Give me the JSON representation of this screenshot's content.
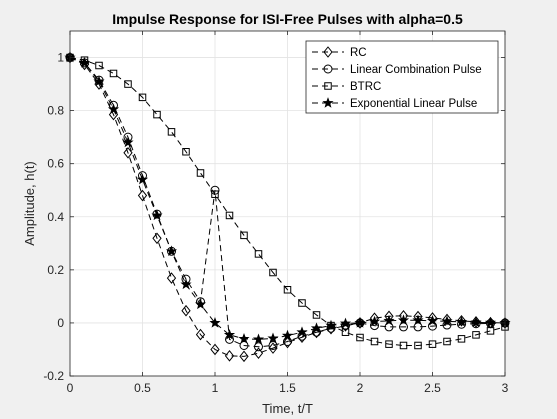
{
  "chart_data": {
    "type": "line",
    "title": "Impulse Response for ISI-Free Pulses with alpha=0.5",
    "xlabel": "Time, t/T",
    "ylabel": "Amplitude, h(t)",
    "xlim": [
      0,
      3
    ],
    "ylim": [
      -0.2,
      1.1
    ],
    "xticks": [
      0,
      0.5,
      1,
      1.5,
      2,
      2.5,
      3
    ],
    "xtick_labels": [
      "0",
      "0.5",
      "1",
      "1.5",
      "2",
      "2.5",
      "3"
    ],
    "yticks": [
      -0.2,
      0,
      0.2,
      0.4,
      0.6,
      0.8,
      1
    ],
    "ytick_labels": [
      "-0.2",
      "0",
      "0.2",
      "0.4",
      "0.6",
      "0.8",
      "1"
    ],
    "grid": true,
    "legend_position": "top-right",
    "x": [
      0,
      0.1,
      0.2,
      0.3,
      0.4,
      0.5,
      0.6,
      0.7,
      0.8,
      0.9,
      1.0,
      1.1,
      1.2,
      1.3,
      1.4,
      1.5,
      1.6,
      1.7,
      1.8,
      1.9,
      2.0,
      2.1,
      2.2,
      2.3,
      2.4,
      2.5,
      2.6,
      2.7,
      2.8,
      2.9,
      3.0
    ],
    "series": [
      {
        "name": "RC",
        "marker": "diamond",
        "values": [
          1.0,
          0.974,
          0.9,
          0.785,
          0.641,
          0.48,
          0.319,
          0.169,
          0.046,
          -0.044,
          -0.1,
          -0.124,
          -0.126,
          -0.114,
          -0.095,
          -0.074,
          -0.054,
          -0.036,
          -0.022,
          -0.011,
          0,
          0.018,
          0.025,
          0.027,
          0.024,
          0.019,
          0.013,
          0.008,
          0.004,
          0.001,
          0
        ]
      },
      {
        "name": "Linear Combination Pulse",
        "marker": "circle",
        "values": [
          1.0,
          0.98,
          0.915,
          0.82,
          0.7,
          0.555,
          0.41,
          0.27,
          0.165,
          0.08,
          0.5,
          -0.062,
          -0.085,
          -0.09,
          -0.085,
          -0.07,
          -0.05,
          -0.035,
          -0.02,
          -0.01,
          0,
          -0.01,
          -0.015,
          -0.015,
          -0.015,
          -0.012,
          -0.008,
          -0.005,
          -0.003,
          -0.002,
          0
        ]
      },
      {
        "name": "BTRC",
        "marker": "square",
        "values": [
          1.0,
          0.99,
          0.97,
          0.94,
          0.9,
          0.85,
          0.785,
          0.72,
          0.645,
          0.565,
          0.485,
          0.405,
          0.33,
          0.26,
          0.19,
          0.125,
          0.075,
          0.03,
          -0.01,
          -0.035,
          -0.055,
          -0.07,
          -0.08,
          -0.085,
          -0.085,
          -0.08,
          -0.07,
          -0.06,
          -0.045,
          -0.03,
          -0.015
        ]
      },
      {
        "name": "Exponential Linear Pulse",
        "marker": "star",
        "values": [
          1.0,
          0.98,
          0.91,
          0.805,
          0.68,
          0.54,
          0.405,
          0.27,
          0.145,
          0.07,
          0.0,
          -0.045,
          -0.06,
          -0.062,
          -0.058,
          -0.048,
          -0.035,
          -0.02,
          -0.01,
          -0.002,
          0.0,
          0.005,
          0.008,
          0.01,
          0.01,
          0.008,
          0.006,
          0.004,
          0.002,
          0.001,
          0.0
        ]
      }
    ]
  }
}
